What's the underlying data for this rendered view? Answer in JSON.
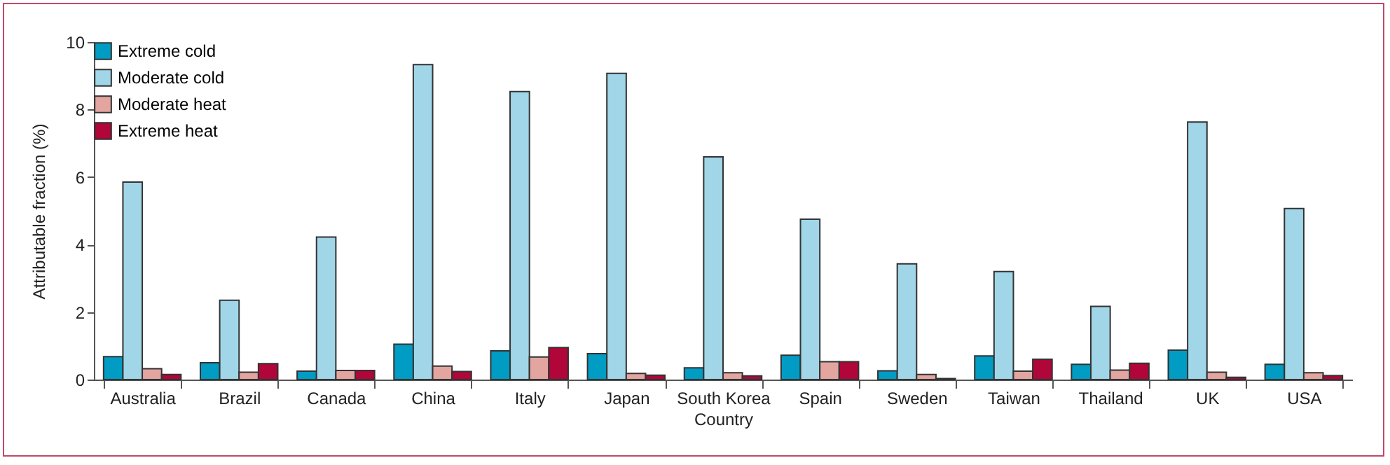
{
  "chart_data": {
    "type": "bar",
    "xlabel": "Country",
    "ylabel": "Attributable fraction (%)",
    "categories": [
      "Australia",
      "Brazil",
      "Canada",
      "China",
      "Italy",
      "Japan",
      "South Korea",
      "Spain",
      "Sweden",
      "Taiwan",
      "Thailand",
      "UK",
      "USA"
    ],
    "series": [
      {
        "name": "Extreme cold",
        "color": "#009cc4",
        "values": [
          0.68,
          0.5,
          0.25,
          1.05,
          0.85,
          0.77,
          0.35,
          0.72,
          0.26,
          0.7,
          0.45,
          0.87,
          0.45
        ]
      },
      {
        "name": "Moderate cold",
        "color": "#a0d6e8",
        "values": [
          5.85,
          2.35,
          4.22,
          9.33,
          8.53,
          9.07,
          6.6,
          4.75,
          3.43,
          3.2,
          2.17,
          7.63,
          5.07
        ]
      },
      {
        "name": "Moderate heat",
        "color": "#e3a5a0",
        "values": [
          0.32,
          0.22,
          0.27,
          0.4,
          0.67,
          0.18,
          0.2,
          0.53,
          0.15,
          0.25,
          0.28,
          0.22,
          0.2
        ]
      },
      {
        "name": "Extreme heat",
        "color": "#b0063a",
        "values": [
          0.15,
          0.47,
          0.27,
          0.24,
          0.95,
          0.13,
          0.11,
          0.53,
          0.03,
          0.6,
          0.48,
          0.07,
          0.12
        ]
      }
    ],
    "ylim": [
      0,
      10
    ],
    "yticks": [
      0,
      2,
      4,
      6,
      8,
      10
    ],
    "grid": false,
    "legend": "top left"
  }
}
